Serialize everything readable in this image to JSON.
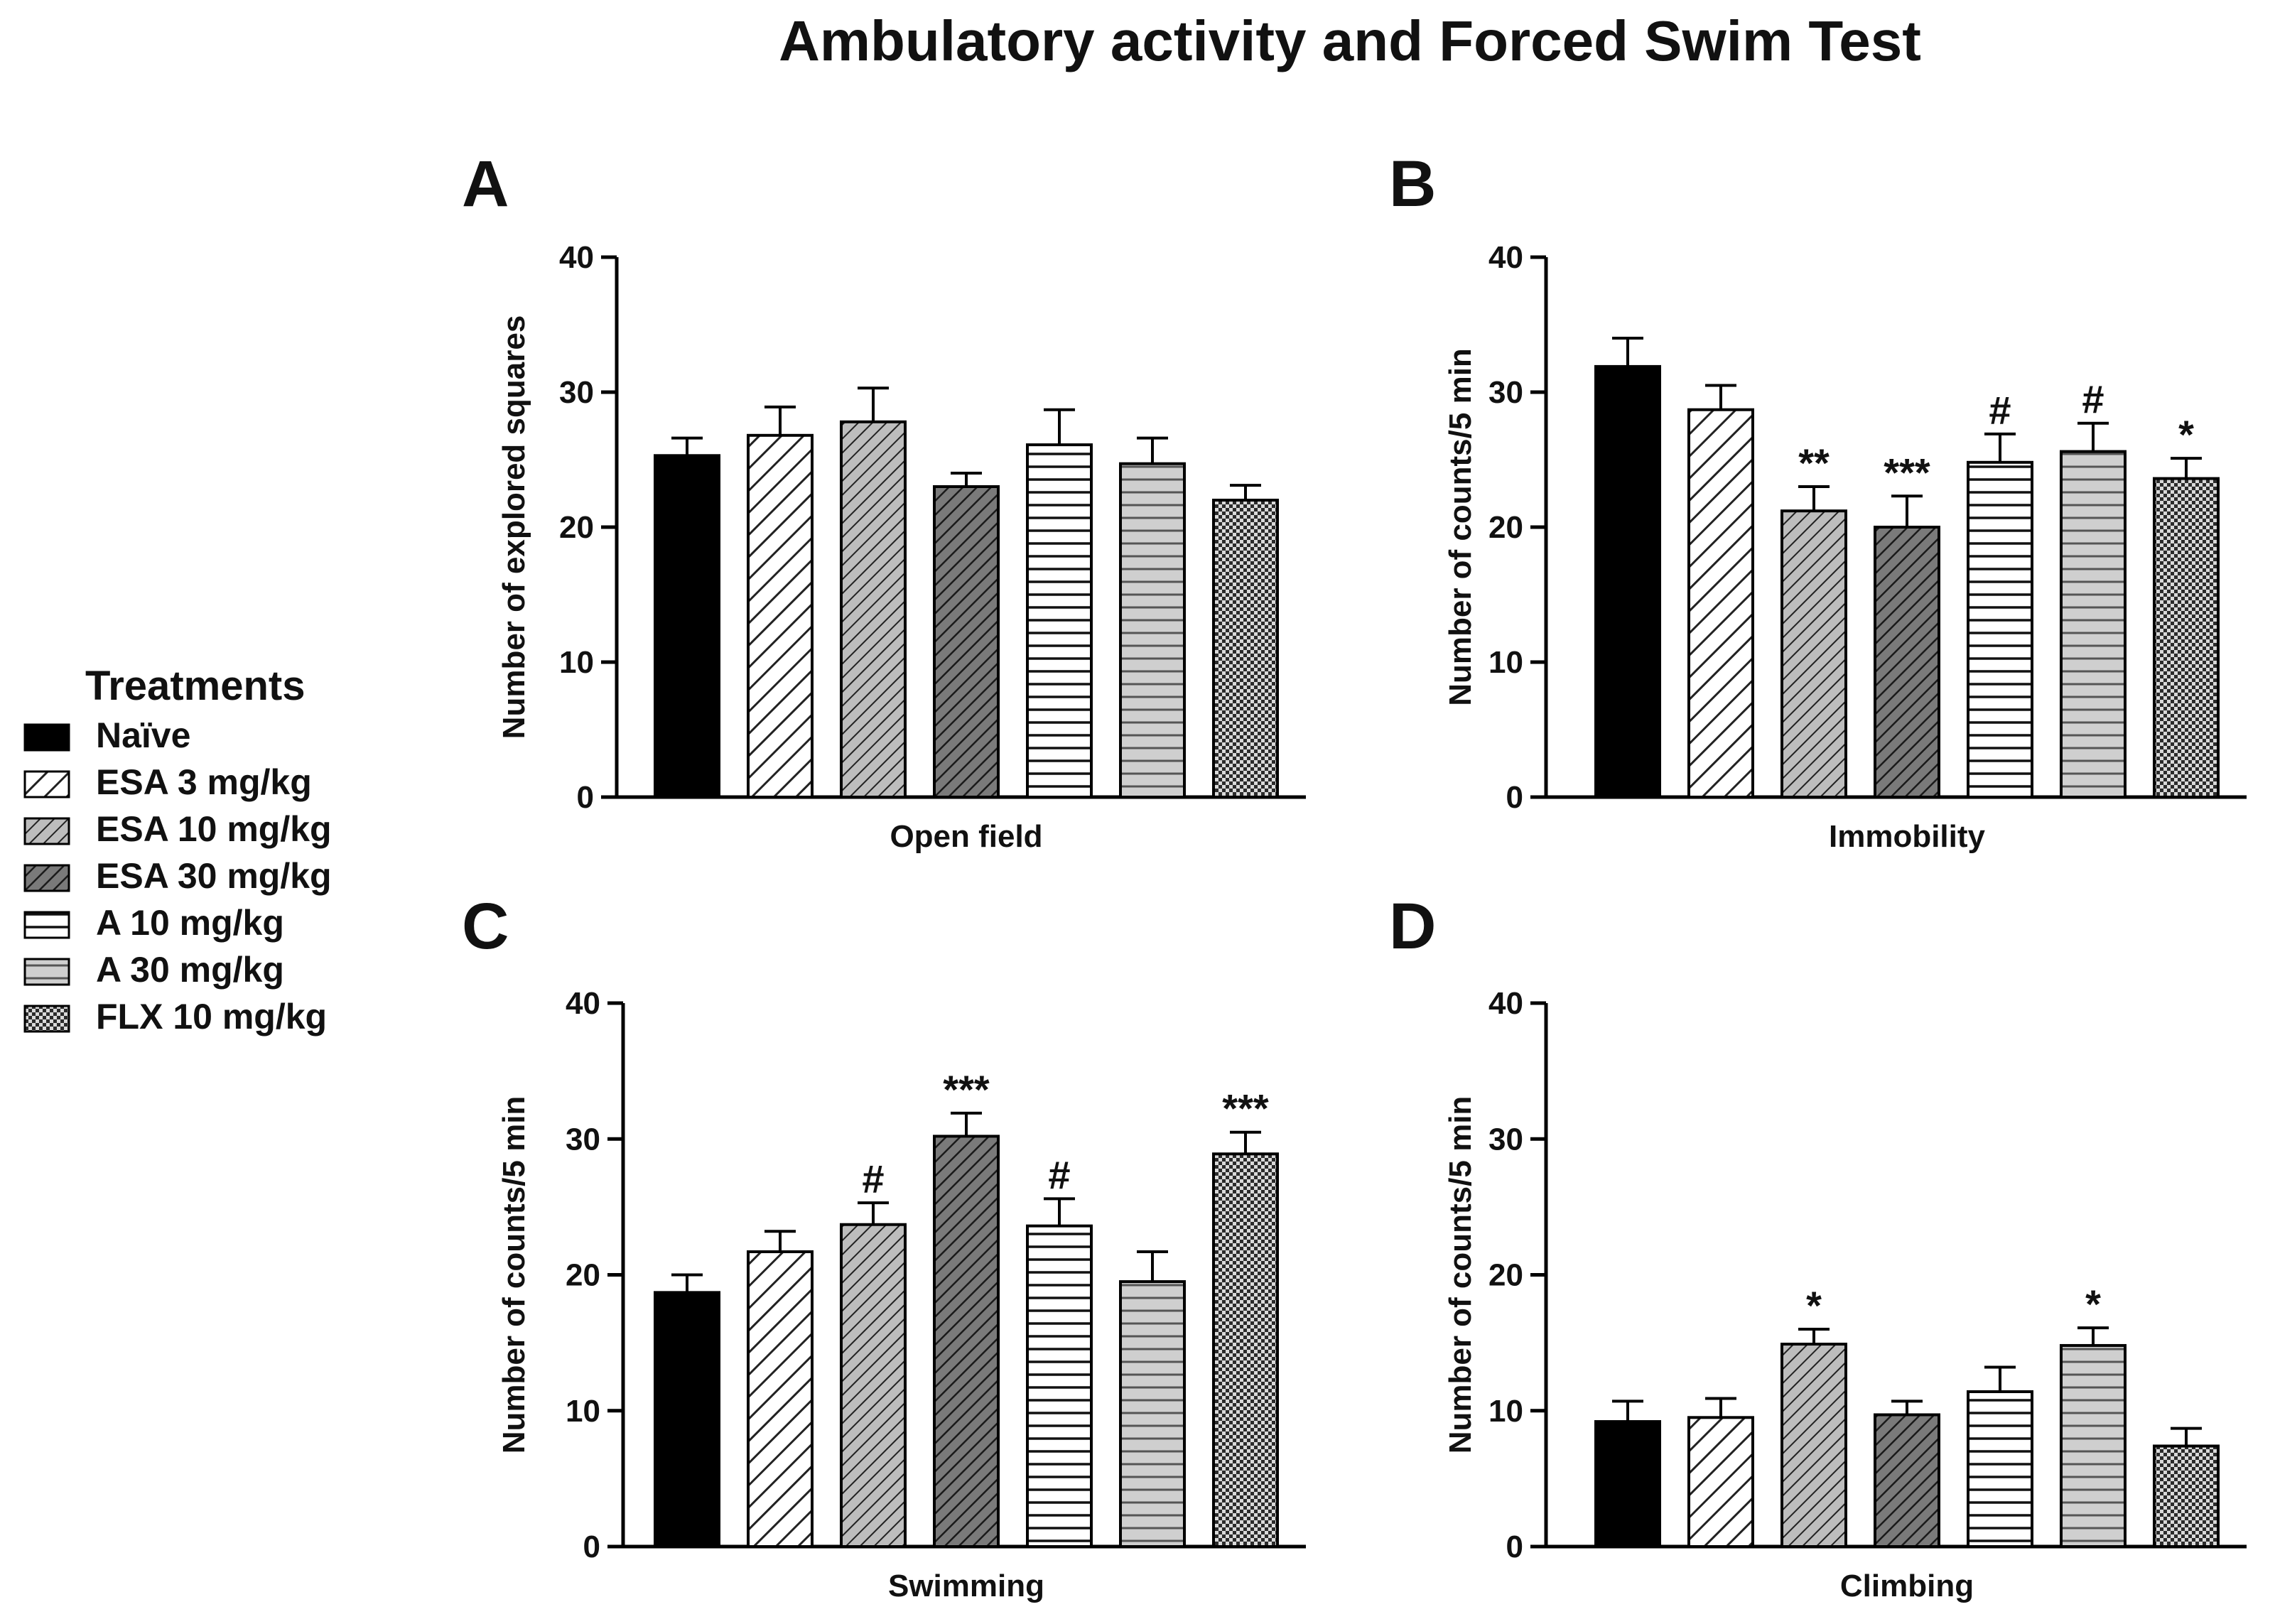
{
  "figure_title": "Ambulatory activity and Forced Swim Test",
  "legend": {
    "title": "Treatments",
    "items": [
      {
        "label": "Naïve",
        "pattern": "solid"
      },
      {
        "label": "ESA 3 mg/kg",
        "pattern": "diag-sparse"
      },
      {
        "label": "ESA 10 mg/kg",
        "pattern": "diag-light"
      },
      {
        "label": "ESA 30 mg/kg",
        "pattern": "diag-dark"
      },
      {
        "label": "A 10 mg/kg",
        "pattern": "hlines"
      },
      {
        "label": "A 30 mg/kg",
        "pattern": "hlines-gray"
      },
      {
        "label": "FLX 10 mg/kg",
        "pattern": "checker"
      }
    ]
  },
  "chart_data": [
    {
      "panel": "A",
      "type": "bar",
      "title": "",
      "xlabel": "Open field",
      "ylabel": "Number of explored squares",
      "ylim": [
        0,
        40
      ],
      "yticks": [
        "0",
        "10",
        "20",
        "30",
        "40"
      ],
      "categories": [
        "Naïve",
        "ESA 3 mg/kg",
        "ESA 10 mg/kg",
        "ESA 30 mg/kg",
        "A 10 mg/kg",
        "A 30 mg/kg",
        "FLX 10 mg/kg"
      ],
      "values": [
        25.3,
        26.8,
        27.8,
        23.0,
        26.1,
        24.7,
        22.0
      ],
      "errors": [
        1.3,
        2.1,
        2.5,
        1.0,
        2.6,
        1.9,
        1.1
      ],
      "annotations": [
        "",
        "",
        "",
        "",
        "",
        "",
        ""
      ]
    },
    {
      "panel": "B",
      "type": "bar",
      "title": "",
      "xlabel": "Immobility",
      "ylabel": "Number of counts/5 min",
      "ylim": [
        0,
        40
      ],
      "yticks": [
        "0",
        "10",
        "20",
        "30",
        "40"
      ],
      "categories": [
        "Naïve",
        "ESA 3 mg/kg",
        "ESA 10 mg/kg",
        "ESA 30 mg/kg",
        "A 10 mg/kg",
        "A 30 mg/kg",
        "FLX 10 mg/kg"
      ],
      "values": [
        31.9,
        28.7,
        21.2,
        20.0,
        24.8,
        25.6,
        23.6
      ],
      "errors": [
        2.1,
        1.8,
        1.8,
        2.3,
        2.1,
        2.1,
        1.5
      ],
      "annotations": [
        "",
        "",
        "**",
        "***",
        "#",
        "#",
        "*"
      ]
    },
    {
      "panel": "C",
      "type": "bar",
      "title": "",
      "xlabel": "Swimming",
      "ylabel": "Number of counts/5 min",
      "ylim": [
        0,
        40
      ],
      "yticks": [
        "0",
        "10",
        "20",
        "30",
        "40"
      ],
      "categories": [
        "Naïve",
        "ESA 3 mg/kg",
        "ESA 10 mg/kg",
        "ESA 30 mg/kg",
        "A 10 mg/kg",
        "A 30 mg/kg",
        "FLX 10 mg/kg"
      ],
      "values": [
        18.7,
        21.7,
        23.7,
        30.2,
        23.6,
        19.5,
        28.9
      ],
      "errors": [
        1.3,
        1.5,
        1.6,
        1.7,
        2.0,
        2.2,
        1.6
      ],
      "annotations": [
        "",
        "",
        "#",
        "***",
        "#",
        "",
        "***"
      ]
    },
    {
      "panel": "D",
      "type": "bar",
      "title": "",
      "xlabel": "Climbing",
      "ylabel": "Number of counts/5 min",
      "ylim": [
        0,
        40
      ],
      "yticks": [
        "0",
        "10",
        "20",
        "30",
        "40"
      ],
      "categories": [
        "Naïve",
        "ESA 3 mg/kg",
        "ESA 10 mg/kg",
        "ESA 30 mg/kg",
        "A 10 mg/kg",
        "A 30 mg/kg",
        "FLX 10 mg/kg"
      ],
      "values": [
        9.2,
        9.5,
        14.9,
        9.7,
        11.4,
        14.8,
        7.4
      ],
      "errors": [
        1.5,
        1.4,
        1.1,
        1.0,
        1.8,
        1.3,
        1.3
      ],
      "annotations": [
        "",
        "",
        "*",
        "",
        "",
        "*",
        ""
      ]
    }
  ]
}
